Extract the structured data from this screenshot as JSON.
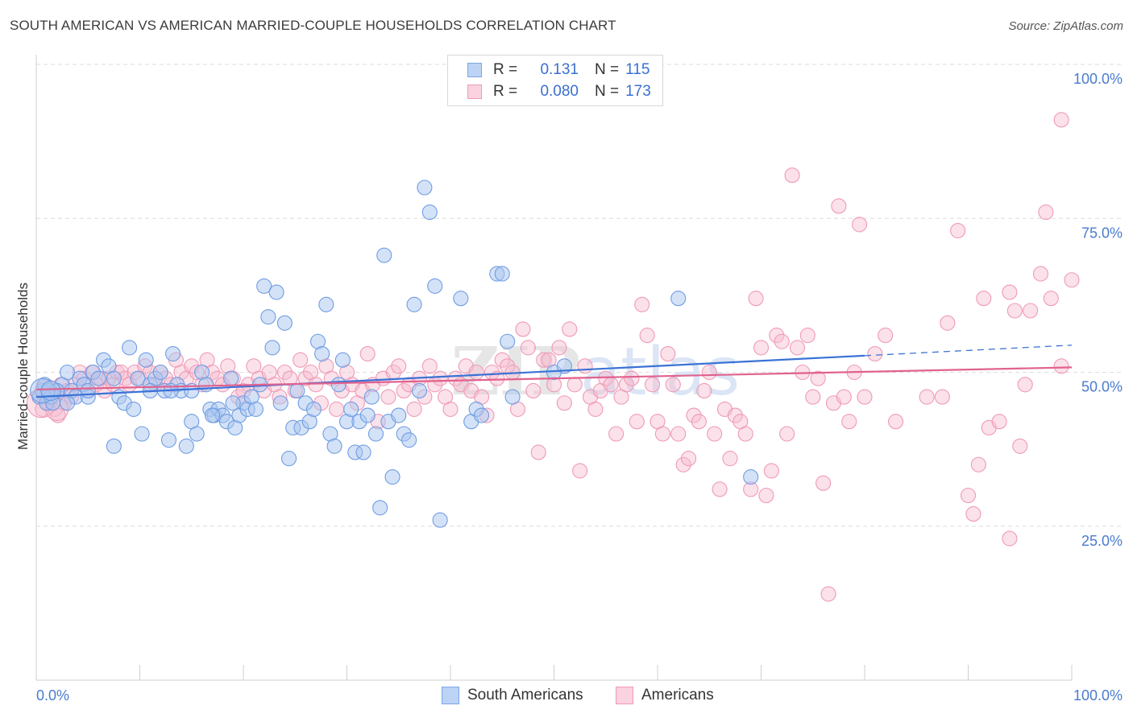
{
  "title": "SOUTH AMERICAN VS AMERICAN MARRIED-COUPLE HOUSEHOLDS CORRELATION CHART",
  "source": "Source: ZipAtlas.com",
  "legend": {
    "r_key": "R =",
    "n_key": "N =",
    "rows": [
      {
        "r": "0.131",
        "n": "115",
        "color": "#7aa7e8"
      },
      {
        "r": "0.080",
        "n": "173",
        "color": "#f09ab5"
      }
    ]
  },
  "bottom_legend": [
    "South Americans",
    "Americans"
  ],
  "colors": {
    "blue": "#4a7fd8",
    "blue_fill": "#a9c6f0",
    "pink": "#e0628e",
    "pink_fill": "#f6bdd0",
    "tick_text": "#4a7bd0"
  },
  "chart_data": {
    "type": "scatter",
    "xlabel": "",
    "ylabel": "Married-couple Households",
    "xlim": [
      0,
      100
    ],
    "ylim": [
      0,
      100
    ],
    "x_tick_labels": [
      "0.0%",
      "100.0%"
    ],
    "y_tick_labels": [
      "100.0%",
      "75.0%",
      "50.0%",
      "25.0%"
    ],
    "y_ticks": [
      100,
      75,
      50,
      25
    ],
    "grid": true,
    "series": [
      {
        "name": "South Americans",
        "r": 0.131,
        "n": 115,
        "trend": {
          "x0": 0,
          "y0": 46.0,
          "x1": 80,
          "y1": 52.7,
          "dash_to": 100,
          "dash_y": 54.4
        },
        "points": [
          [
            0.3,
            46
          ],
          [
            0.6,
            47
          ],
          [
            0.8,
            48
          ],
          [
            1.0,
            45
          ],
          [
            1.2,
            47
          ],
          [
            1.4,
            46
          ],
          [
            1.6,
            45
          ],
          [
            2.0,
            47
          ],
          [
            2.5,
            48
          ],
          [
            3.0,
            50
          ],
          [
            3.4,
            47
          ],
          [
            3.8,
            46
          ],
          [
            4.2,
            49
          ],
          [
            4.6,
            48
          ],
          [
            5.0,
            46
          ],
          [
            5.5,
            50
          ],
          [
            6.0,
            49
          ],
          [
            6.5,
            52
          ],
          [
            7.0,
            51
          ],
          [
            7.5,
            49
          ],
          [
            8.0,
            46
          ],
          [
            8.5,
            45
          ],
          [
            9.0,
            54
          ],
          [
            9.4,
            44
          ],
          [
            9.8,
            49
          ],
          [
            10.2,
            40
          ],
          [
            10.6,
            52
          ],
          [
            11.0,
            48
          ],
          [
            11.5,
            49
          ],
          [
            12.0,
            50
          ],
          [
            12.4,
            47
          ],
          [
            12.8,
            39
          ],
          [
            13.2,
            53
          ],
          [
            13.6,
            48
          ],
          [
            14.0,
            47
          ],
          [
            14.5,
            38
          ],
          [
            15.0,
            42
          ],
          [
            15.5,
            40
          ],
          [
            16.0,
            50
          ],
          [
            16.4,
            48
          ],
          [
            16.8,
            44
          ],
          [
            17.2,
            43
          ],
          [
            17.6,
            44
          ],
          [
            18.0,
            43
          ],
          [
            18.4,
            42
          ],
          [
            18.8,
            49
          ],
          [
            19.2,
            41
          ],
          [
            19.6,
            43
          ],
          [
            20.0,
            45
          ],
          [
            20.4,
            44
          ],
          [
            20.8,
            46
          ],
          [
            21.2,
            44
          ],
          [
            21.6,
            48
          ],
          [
            22.0,
            64
          ],
          [
            22.4,
            59
          ],
          [
            22.8,
            54
          ],
          [
            23.2,
            63
          ],
          [
            23.6,
            45
          ],
          [
            24.0,
            58
          ],
          [
            24.4,
            36
          ],
          [
            24.8,
            41
          ],
          [
            25.2,
            47
          ],
          [
            25.6,
            41
          ],
          [
            26.0,
            45
          ],
          [
            26.4,
            42
          ],
          [
            26.8,
            44
          ],
          [
            27.2,
            55
          ],
          [
            27.6,
            53
          ],
          [
            28.0,
            61
          ],
          [
            28.4,
            40
          ],
          [
            28.8,
            38
          ],
          [
            29.2,
            48
          ],
          [
            29.6,
            52
          ],
          [
            30.0,
            42
          ],
          [
            30.4,
            44
          ],
          [
            30.8,
            37
          ],
          [
            31.2,
            42
          ],
          [
            31.6,
            37
          ],
          [
            32.0,
            43
          ],
          [
            32.4,
            46
          ],
          [
            32.8,
            40
          ],
          [
            33.2,
            28
          ],
          [
            33.6,
            69
          ],
          [
            34.0,
            42
          ],
          [
            34.4,
            33
          ],
          [
            35.0,
            43
          ],
          [
            35.5,
            40
          ],
          [
            36.0,
            39
          ],
          [
            36.5,
            61
          ],
          [
            37.0,
            47
          ],
          [
            37.5,
            80
          ],
          [
            38.0,
            76
          ],
          [
            38.5,
            64
          ],
          [
            39.0,
            26
          ],
          [
            41.0,
            62
          ],
          [
            42.0,
            42
          ],
          [
            42.5,
            44
          ],
          [
            43.0,
            43
          ],
          [
            44.5,
            66
          ],
          [
            45.0,
            66
          ],
          [
            45.5,
            55
          ],
          [
            46.0,
            46
          ],
          [
            50.0,
            50
          ],
          [
            51.0,
            51
          ],
          [
            62.0,
            62
          ],
          [
            69.0,
            33
          ],
          [
            7.5,
            38
          ],
          [
            2.0,
            47
          ],
          [
            3.0,
            45
          ],
          [
            5.0,
            47
          ],
          [
            11.0,
            47
          ],
          [
            13.0,
            47
          ],
          [
            15.0,
            47
          ],
          [
            17.0,
            43
          ],
          [
            19.0,
            45
          ]
        ]
      },
      {
        "name": "Americans",
        "r": 0.08,
        "n": 173,
        "trend": {
          "x0": 0,
          "y0": 47.2,
          "x1": 100,
          "y1": 50.8
        },
        "points": [
          [
            0.3,
            46
          ],
          [
            0.6,
            44
          ],
          [
            0.9,
            46
          ],
          [
            1.2,
            45
          ],
          [
            1.5,
            47
          ],
          [
            1.8,
            44
          ],
          [
            2.1,
            43
          ],
          [
            2.4,
            48
          ],
          [
            2.7,
            45
          ],
          [
            3.0,
            47
          ],
          [
            3.4,
            46
          ],
          [
            3.8,
            48
          ],
          [
            4.2,
            50
          ],
          [
            4.6,
            49
          ],
          [
            5.0,
            47
          ],
          [
            5.4,
            50
          ],
          [
            5.8,
            48
          ],
          [
            6.2,
            49
          ],
          [
            6.6,
            47
          ],
          [
            7.0,
            49
          ],
          [
            7.4,
            48
          ],
          [
            7.8,
            50
          ],
          [
            8.2,
            50
          ],
          [
            8.6,
            49
          ],
          [
            9.0,
            48
          ],
          [
            9.5,
            50
          ],
          [
            10.0,
            49
          ],
          [
            10.5,
            51
          ],
          [
            11.0,
            50
          ],
          [
            11.5,
            48
          ],
          [
            12.0,
            50
          ],
          [
            12.5,
            49
          ],
          [
            13.0,
            48
          ],
          [
            13.5,
            52
          ],
          [
            14.0,
            50
          ],
          [
            14.5,
            49
          ],
          [
            15.0,
            51
          ],
          [
            15.5,
            50
          ],
          [
            16.0,
            48
          ],
          [
            16.5,
            52
          ],
          [
            17.0,
            50
          ],
          [
            17.5,
            49
          ],
          [
            18.0,
            48
          ],
          [
            18.5,
            51
          ],
          [
            19.0,
            49
          ],
          [
            19.5,
            46
          ],
          [
            20.0,
            47
          ],
          [
            20.5,
            48
          ],
          [
            21.0,
            51
          ],
          [
            21.5,
            49
          ],
          [
            22.0,
            47
          ],
          [
            22.5,
            50
          ],
          [
            23.0,
            48
          ],
          [
            23.5,
            46
          ],
          [
            24.0,
            50
          ],
          [
            24.5,
            49
          ],
          [
            25.0,
            47
          ],
          [
            25.5,
            52
          ],
          [
            26.0,
            49
          ],
          [
            26.5,
            50
          ],
          [
            27.0,
            48
          ],
          [
            27.5,
            45
          ],
          [
            28.0,
            51
          ],
          [
            28.5,
            49
          ],
          [
            29.0,
            44
          ],
          [
            29.5,
            47
          ],
          [
            30.0,
            50
          ],
          [
            30.5,
            48
          ],
          [
            31.0,
            45
          ],
          [
            31.5,
            47
          ],
          [
            32.0,
            53
          ],
          [
            32.5,
            48
          ],
          [
            33.0,
            42
          ],
          [
            33.5,
            49
          ],
          [
            34.0,
            46
          ],
          [
            34.5,
            50
          ],
          [
            35.0,
            51
          ],
          [
            35.5,
            47
          ],
          [
            36.0,
            48
          ],
          [
            36.5,
            44
          ],
          [
            37.0,
            49
          ],
          [
            37.5,
            46
          ],
          [
            38.0,
            51
          ],
          [
            38.5,
            48
          ],
          [
            39.0,
            49
          ],
          [
            39.5,
            46
          ],
          [
            40.0,
            44
          ],
          [
            40.5,
            49
          ],
          [
            41.0,
            48
          ],
          [
            41.5,
            51
          ],
          [
            42.0,
            47
          ],
          [
            42.5,
            50
          ],
          [
            43.0,
            46
          ],
          [
            43.5,
            43
          ],
          [
            44.0,
            50
          ],
          [
            44.5,
            49
          ],
          [
            45.0,
            52
          ],
          [
            45.5,
            51
          ],
          [
            46.0,
            50
          ],
          [
            46.5,
            44
          ],
          [
            47.0,
            57
          ],
          [
            47.5,
            54
          ],
          [
            48.0,
            47
          ],
          [
            48.5,
            37
          ],
          [
            49.0,
            52
          ],
          [
            49.5,
            52
          ],
          [
            50.0,
            48
          ],
          [
            50.5,
            54
          ],
          [
            51.0,
            45
          ],
          [
            51.5,
            57
          ],
          [
            52.0,
            48
          ],
          [
            52.5,
            34
          ],
          [
            53.0,
            51
          ],
          [
            53.5,
            46
          ],
          [
            54.0,
            44
          ],
          [
            54.5,
            47
          ],
          [
            55.0,
            49
          ],
          [
            55.5,
            48
          ],
          [
            56.0,
            40
          ],
          [
            56.5,
            46
          ],
          [
            57.0,
            48
          ],
          [
            57.5,
            49
          ],
          [
            58.0,
            42
          ],
          [
            58.5,
            61
          ],
          [
            59.0,
            56
          ],
          [
            59.5,
            48
          ],
          [
            60.0,
            42
          ],
          [
            60.5,
            40
          ],
          [
            61.0,
            53
          ],
          [
            61.5,
            48
          ],
          [
            62.0,
            40
          ],
          [
            62.5,
            35
          ],
          [
            63.0,
            36
          ],
          [
            63.5,
            43
          ],
          [
            64.0,
            42
          ],
          [
            64.5,
            47
          ],
          [
            65.0,
            50
          ],
          [
            65.5,
            40
          ],
          [
            66.0,
            31
          ],
          [
            66.5,
            44
          ],
          [
            67.0,
            36
          ],
          [
            67.5,
            43
          ],
          [
            68.0,
            42
          ],
          [
            68.5,
            40
          ],
          [
            69.0,
            31
          ],
          [
            69.5,
            62
          ],
          [
            70.0,
            54
          ],
          [
            70.5,
            30
          ],
          [
            71.0,
            34
          ],
          [
            71.5,
            56
          ],
          [
            72.0,
            55
          ],
          [
            72.5,
            40
          ],
          [
            73.0,
            82
          ],
          [
            73.5,
            54
          ],
          [
            74.0,
            50
          ],
          [
            74.5,
            56
          ],
          [
            75.0,
            46
          ],
          [
            75.5,
            49
          ],
          [
            76.0,
            32
          ],
          [
            76.5,
            14
          ],
          [
            77.0,
            45
          ],
          [
            77.5,
            77
          ],
          [
            78.0,
            46
          ],
          [
            78.5,
            42
          ],
          [
            79.0,
            50
          ],
          [
            80.0,
            46
          ],
          [
            81.0,
            53
          ],
          [
            82.0,
            56
          ],
          [
            83.0,
            42
          ]
        ],
        "outliers": [
          [
            79.5,
            74
          ],
          [
            86.0,
            46
          ],
          [
            87.5,
            46
          ],
          [
            89.0,
            73
          ],
          [
            90.0,
            30
          ],
          [
            90.5,
            27
          ],
          [
            91.0,
            35
          ],
          [
            92.0,
            41
          ],
          [
            93.0,
            42
          ],
          [
            94.0,
            23
          ],
          [
            95.0,
            38
          ],
          [
            96.0,
            60
          ],
          [
            97.0,
            66
          ],
          [
            97.5,
            76
          ],
          [
            98.0,
            62
          ],
          [
            99.0,
            91
          ],
          [
            100.0,
            65
          ],
          [
            99.0,
            51
          ],
          [
            94.0,
            63
          ],
          [
            88.0,
            58
          ],
          [
            91.5,
            62
          ],
          [
            95.5,
            48
          ],
          [
            94.5,
            60
          ]
        ]
      }
    ]
  }
}
